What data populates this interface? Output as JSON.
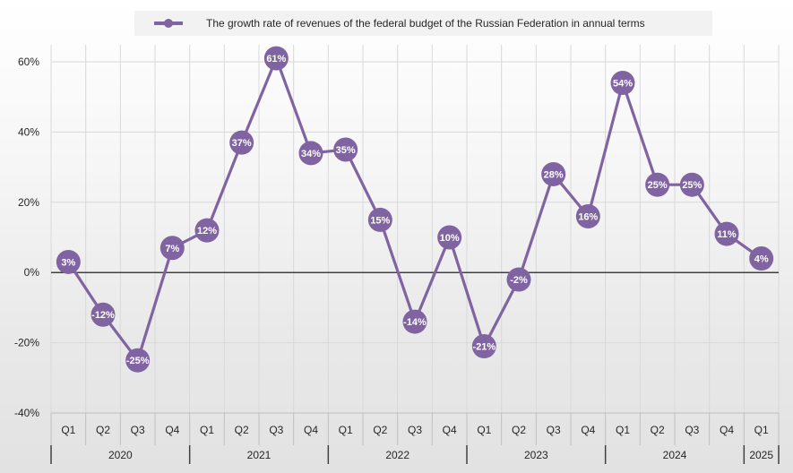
{
  "chart_data": {
    "type": "line",
    "legend": "The growth rate of revenues of the federal budget of the Russian Federation in annual terms",
    "legend_position": "top",
    "color": "#8064a2",
    "ylim": [
      -40,
      60
    ],
    "yticks": [
      -40,
      -20,
      0,
      20,
      40,
      60
    ],
    "ytick_labels": [
      "-40%",
      "-20%",
      "0%",
      "20%",
      "40%",
      "60%"
    ],
    "grid": true,
    "categories": [
      "Q1",
      "Q2",
      "Q3",
      "Q4",
      "Q1",
      "Q2",
      "Q3",
      "Q4",
      "Q1",
      "Q2",
      "Q3",
      "Q4",
      "Q1",
      "Q2",
      "Q3",
      "Q4",
      "Q1",
      "Q2",
      "Q3",
      "Q4",
      "Q1"
    ],
    "years": [
      {
        "label": "2020",
        "count": 4
      },
      {
        "label": "2021",
        "count": 4
      },
      {
        "label": "2022",
        "count": 4
      },
      {
        "label": "2023",
        "count": 4
      },
      {
        "label": "2024",
        "count": 4
      },
      {
        "label": "2025",
        "count": 1
      }
    ],
    "series": [
      {
        "name": "The growth rate of revenues of the federal budget of the Russian Federation in annual terms",
        "values": [
          3,
          -12,
          -25,
          7,
          12,
          37,
          61,
          34,
          35,
          15,
          -14,
          10,
          -21,
          -2,
          28,
          16,
          54,
          25,
          25,
          11,
          4
        ],
        "labels": [
          "3%",
          "-12%",
          "-25%",
          "7%",
          "12%",
          "37%",
          "61%",
          "34%",
          "35%",
          "15%",
          "-14%",
          "10%",
          "-21%",
          "-2%",
          "28%",
          "16%",
          "54%",
          "25%",
          "25%",
          "11%",
          "4%"
        ]
      }
    ]
  }
}
